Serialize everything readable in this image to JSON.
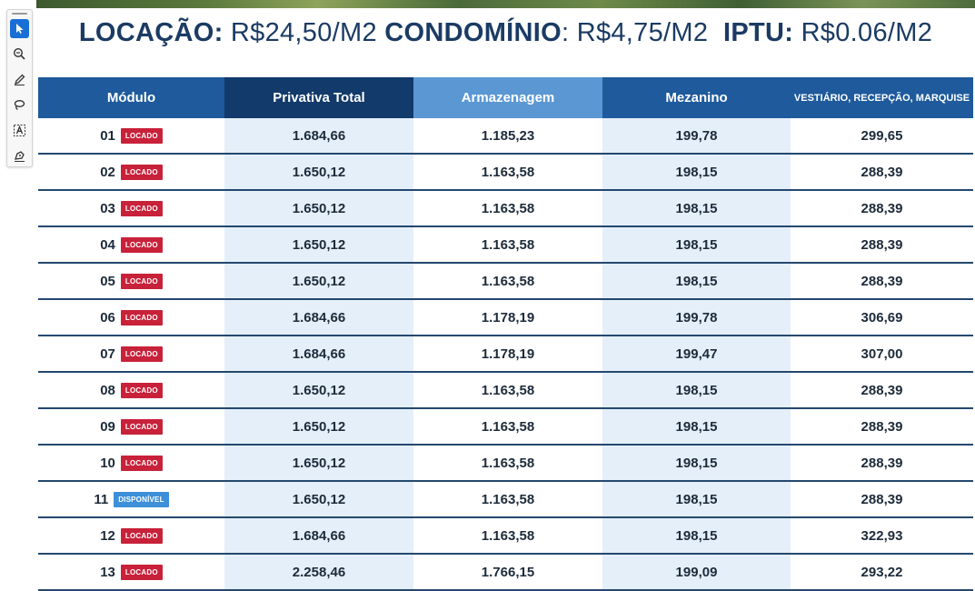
{
  "header": {
    "locacao_label": "LOCAÇÃO:",
    "locacao_value": "R$24,50/M2",
    "condominio_label": "CONDOMÍNIO",
    "condominio_value": ": R$4,75/M2",
    "iptu_label": "IPTU:",
    "iptu_value": "R$0.06/M2"
  },
  "toolbar": {
    "tools": [
      "select-arrow-icon",
      "zoom-search-icon",
      "pen-draw-icon",
      "lasso-icon",
      "text-select-icon",
      "stamp-sign-icon"
    ],
    "active_color": "#1a6fd6"
  },
  "table": {
    "columns": [
      "Módulo",
      "Privativa Total",
      "Armazenagem",
      "Mezanino",
      "VESTIÁRIO, RECEPÇÃO, MARQUISE"
    ],
    "rows": [
      {
        "modulo": "01",
        "status": "LOCADO",
        "privativa": "1.684,66",
        "armazenagem": "1.185,23",
        "mezanino": "199,78",
        "vestiario": "299,65"
      },
      {
        "modulo": "02",
        "status": "LOCADO",
        "privativa": "1.650,12",
        "armazenagem": "1.163,58",
        "mezanino": "198,15",
        "vestiario": "288,39"
      },
      {
        "modulo": "03",
        "status": "LOCADO",
        "privativa": "1.650,12",
        "armazenagem": "1.163,58",
        "mezanino": "198,15",
        "vestiario": "288,39"
      },
      {
        "modulo": "04",
        "status": "LOCADO",
        "privativa": "1.650,12",
        "armazenagem": "1.163,58",
        "mezanino": "198,15",
        "vestiario": "288,39"
      },
      {
        "modulo": "05",
        "status": "LOCADO",
        "privativa": "1.650,12",
        "armazenagem": "1.163,58",
        "mezanino": "198,15",
        "vestiario": "288,39"
      },
      {
        "modulo": "06",
        "status": "LOCADO",
        "privativa": "1.684,66",
        "armazenagem": "1.178,19",
        "mezanino": "199,78",
        "vestiario": "306,69"
      },
      {
        "modulo": "07",
        "status": "LOCADO",
        "privativa": "1.684,66",
        "armazenagem": "1.178,19",
        "mezanino": "199,47",
        "vestiario": "307,00"
      },
      {
        "modulo": "08",
        "status": "LOCADO",
        "privativa": "1.650,12",
        "armazenagem": "1.163,58",
        "mezanino": "198,15",
        "vestiario": "288,39"
      },
      {
        "modulo": "09",
        "status": "LOCADO",
        "privativa": "1.650,12",
        "armazenagem": "1.163,58",
        "mezanino": "198,15",
        "vestiario": "288,39"
      },
      {
        "modulo": "10",
        "status": "LOCADO",
        "privativa": "1.650,12",
        "armazenagem": "1.163,58",
        "mezanino": "198,15",
        "vestiario": "288,39"
      },
      {
        "modulo": "11",
        "status": "DISPONÍVEL",
        "privativa": "1.650,12",
        "armazenagem": "1.163,58",
        "mezanino": "198,15",
        "vestiario": "288,39"
      },
      {
        "modulo": "12",
        "status": "LOCADO",
        "privativa": "1.684,66",
        "armazenagem": "1.163,58",
        "mezanino": "198,15",
        "vestiario": "322,93"
      },
      {
        "modulo": "13",
        "status": "LOCADO",
        "privativa": "2.258,46",
        "armazenagem": "1.766,15",
        "mezanino": "199,09",
        "vestiario": "293,22"
      }
    ]
  },
  "colors": {
    "title_navy": "#1b3b64",
    "header_blue": "#1e5a9c",
    "header_dark": "#123a6a",
    "header_light": "#5b97d3",
    "locado_red": "#c8213a",
    "disponivel_blue": "#3d8fd9",
    "shaded_cell": "#e4eff9"
  }
}
